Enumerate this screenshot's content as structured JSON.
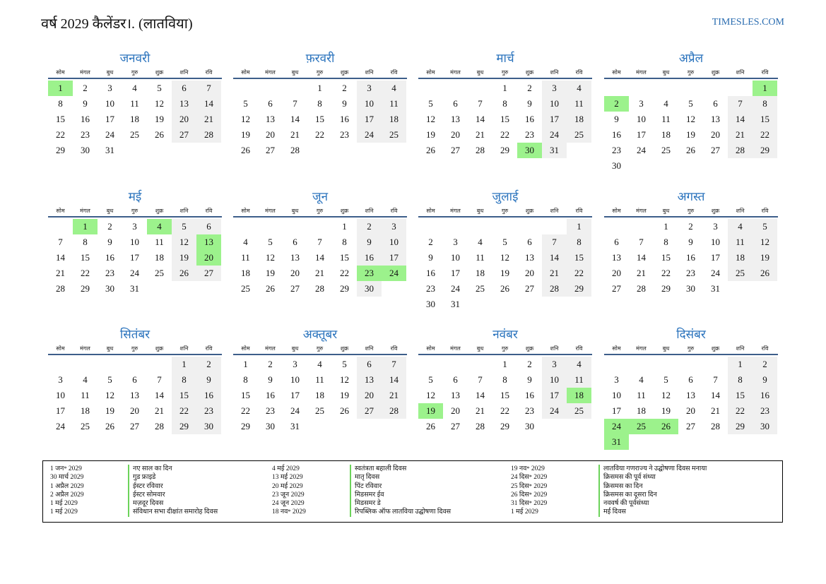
{
  "header": {
    "title": "वर्ष 2029 कैलेंडर।. (लातविया)",
    "site": "TIMESLES.COM"
  },
  "weekdays": [
    "सोम",
    "मंगल",
    "बुध",
    "गुरु",
    "शुक्र",
    "शनि",
    "रवि"
  ],
  "colors": {
    "holiday": "#9cf28c",
    "weekend": "#f0f0f0",
    "month_title": "#2a73bd",
    "rule": "#3d5e8a"
  },
  "months": [
    {
      "name": "जनवरी",
      "offset": 0,
      "days": 31,
      "holidays": [
        1
      ]
    },
    {
      "name": "फ़रवरी",
      "offset": 3,
      "days": 28,
      "holidays": []
    },
    {
      "name": "मार्च",
      "offset": 3,
      "days": 31,
      "holidays": [
        30
      ]
    },
    {
      "name": "अप्रैल",
      "offset": 6,
      "days": 30,
      "holidays": [
        1,
        2
      ]
    },
    {
      "name": "मई",
      "offset": 1,
      "days": 31,
      "holidays": [
        1,
        4,
        13,
        20
      ]
    },
    {
      "name": "जून",
      "offset": 4,
      "days": 30,
      "holidays": [
        23,
        24
      ]
    },
    {
      "name": "जुलाई",
      "offset": 6,
      "days": 31,
      "holidays": []
    },
    {
      "name": "अगस्त",
      "offset": 2,
      "days": 31,
      "holidays": []
    },
    {
      "name": "सितंबर",
      "offset": 5,
      "days": 30,
      "holidays": []
    },
    {
      "name": "अक्तूबर",
      "offset": 0,
      "days": 31,
      "holidays": []
    },
    {
      "name": "नवंबर",
      "offset": 3,
      "days": 30,
      "holidays": [
        18,
        19
      ]
    },
    {
      "name": "दिसंबर",
      "offset": 5,
      "days": 31,
      "holidays": [
        24,
        25,
        26,
        31
      ]
    }
  ],
  "legend": {
    "columns": [
      {
        "dates": [
          "1 जन॰ 2029",
          "30 मार्च 2029",
          "1 अप्रैल 2029",
          "2 अप्रैल 2029",
          "1 मई 2029",
          "1 मई 2029"
        ],
        "names": [
          "नए साल का दिन",
          "गुड फ्राइडे",
          "ईस्टर रविवार",
          "ईस्टर सोमवार",
          "मज़दूर दिवस",
          "संविधान सभा दीक्षांत समारोह दिवस"
        ]
      },
      {
        "dates": [
          "4 मई 2029",
          "13 मई 2029",
          "20 मई 2029",
          "23 जून 2029",
          "24 जून 2029",
          "18 नव॰ 2029"
        ],
        "names": [
          "स्वतंत्रता बहाली दिवस",
          "मातृ दिवस",
          "पिंट रविवार",
          "मिडसमर ईव",
          "मिडसमर डे",
          "रिपब्लिक ऑफ लातविया उद्घोषणा दिवस"
        ]
      },
      {
        "dates": [
          "19 नव॰ 2029",
          "24 दिस॰ 2029",
          "25 दिस॰ 2029",
          "26 दिस॰ 2029",
          "31 दिस॰ 2029",
          "1 मई 2029"
        ],
        "names": [
          "लातविया गणराज्य ने उद्घोषणा दिवस मनाया",
          "क्रिसमस की पूर्व संध्या",
          "क्रिसमस का दिन",
          "क्रिसमस का दूसरा दिन",
          "नववर्ष की पूर्वसंध्या",
          "मई दिवस"
        ]
      }
    ]
  }
}
